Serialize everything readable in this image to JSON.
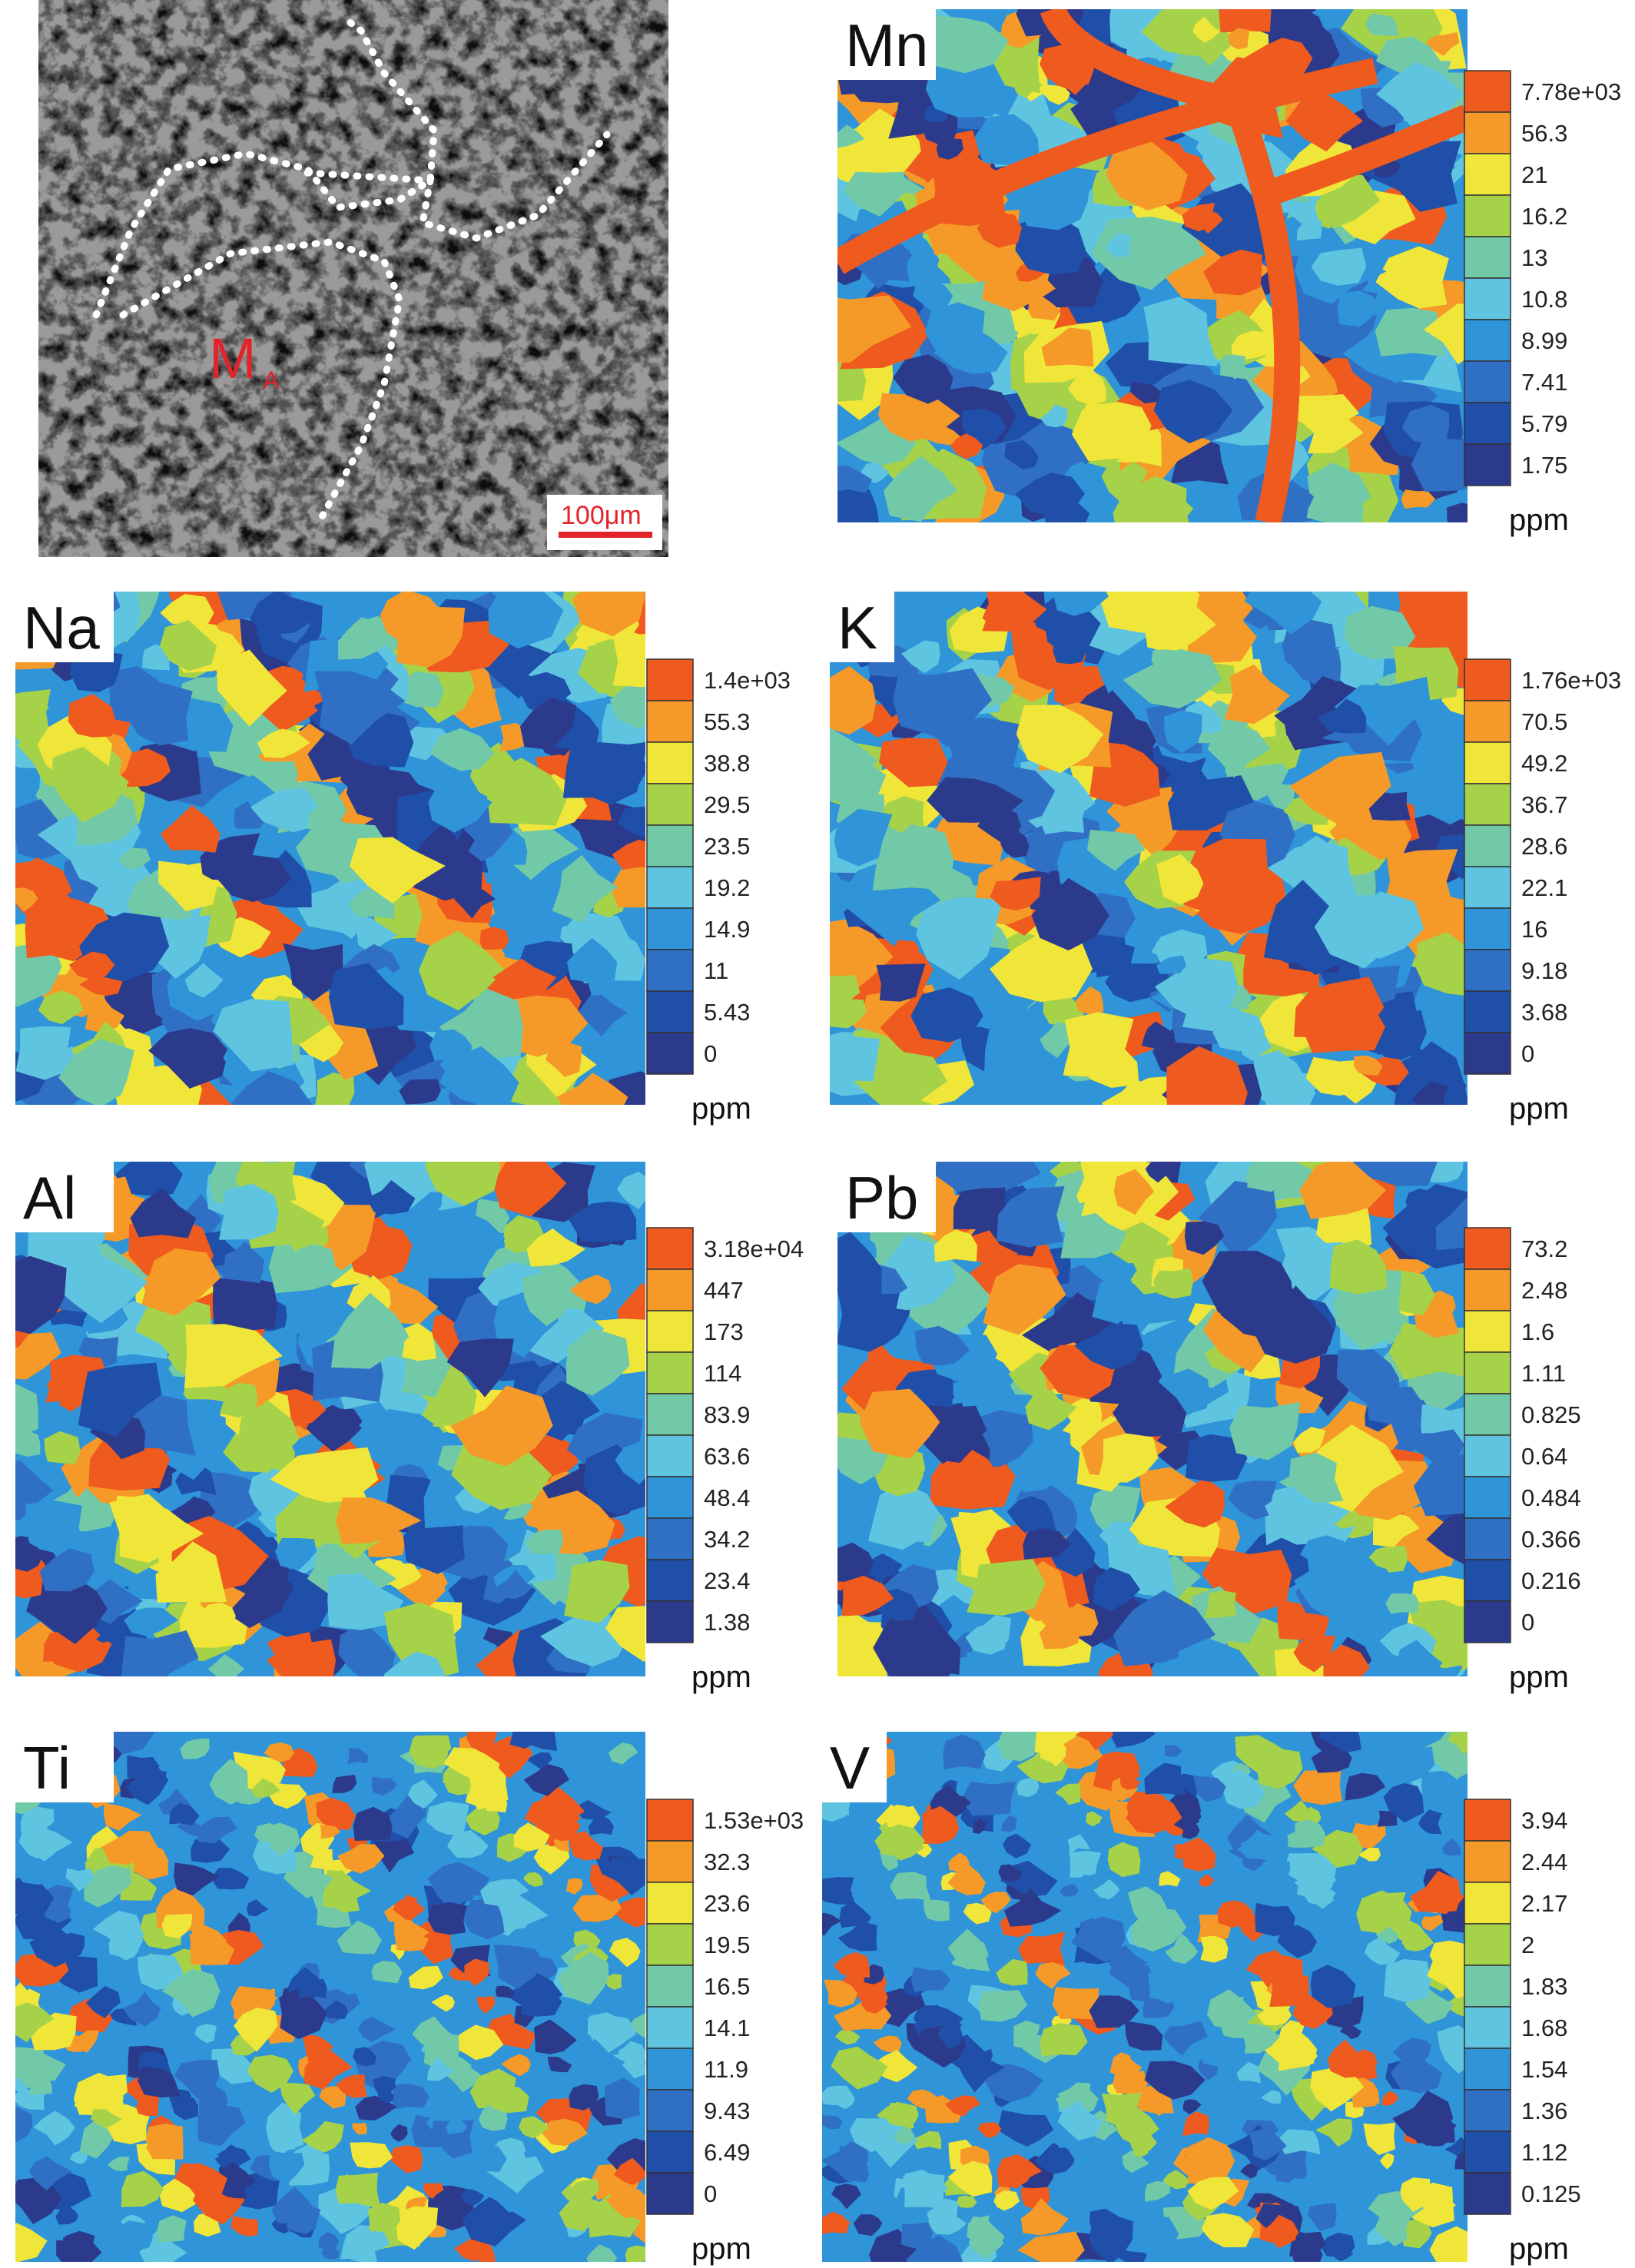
{
  "micrograph": {
    "region_label_main": "M",
    "region_label_sub": "A",
    "scale_bar_label": "100μm",
    "accent_color": "#e3232a"
  },
  "palette": [
    "#2c3a8c",
    "#1f4fa8",
    "#2f6fc4",
    "#2f94d8",
    "#5ec4e0",
    "#72c9a8",
    "#a6d24a",
    "#f0e63a",
    "#f59a28",
    "#ef5a1e"
  ],
  "chart_data": [
    {
      "type": "heatmap",
      "title": "Mn",
      "unit_label": "ppm",
      "legend_ticks": [
        "7.78e+03",
        "56.3",
        "21",
        "16.2",
        "13",
        "10.8",
        "8.99",
        "7.41",
        "5.79",
        "1.75"
      ],
      "pattern": "veins"
    },
    {
      "type": "heatmap",
      "title": "Na",
      "unit_label": "ppm",
      "legend_ticks": [
        "1.4e+03",
        "55.3",
        "38.8",
        "29.5",
        "23.5",
        "19.2",
        "14.9",
        "11",
        "5.43",
        "0"
      ],
      "pattern": "diagonal"
    },
    {
      "type": "heatmap",
      "title": "K",
      "unit_label": "ppm",
      "legend_ticks": [
        "1.76e+03",
        "70.5",
        "49.2",
        "36.7",
        "28.6",
        "22.1",
        "16",
        "9.18",
        "3.68",
        "0"
      ],
      "pattern": "diagonal"
    },
    {
      "type": "heatmap",
      "title": "Al",
      "unit_label": "ppm",
      "legend_ticks": [
        "3.18e+04",
        "447",
        "173",
        "114",
        "83.9",
        "63.6",
        "48.4",
        "34.2",
        "23.4",
        "1.38"
      ],
      "pattern": "patchy"
    },
    {
      "type": "heatmap",
      "title": "Pb",
      "unit_label": "ppm",
      "legend_ticks": [
        "73.2",
        "2.48",
        "1.6",
        "1.11",
        "0.825",
        "0.64",
        "0.484",
        "0.366",
        "0.216",
        "0"
      ],
      "pattern": "patchy"
    },
    {
      "type": "heatmap",
      "title": "Ti",
      "unit_label": "ppm",
      "legend_ticks": [
        "1.53e+03",
        "32.3",
        "23.6",
        "19.5",
        "16.5",
        "14.1",
        "11.9",
        "9.43",
        "6.49",
        "0"
      ],
      "pattern": "fine"
    },
    {
      "type": "heatmap",
      "title": "V",
      "unit_label": "ppm",
      "legend_ticks": [
        "3.94",
        "2.44",
        "2.17",
        "2",
        "1.83",
        "1.68",
        "1.54",
        "1.36",
        "1.12",
        "0.125"
      ],
      "pattern": "fine"
    }
  ]
}
